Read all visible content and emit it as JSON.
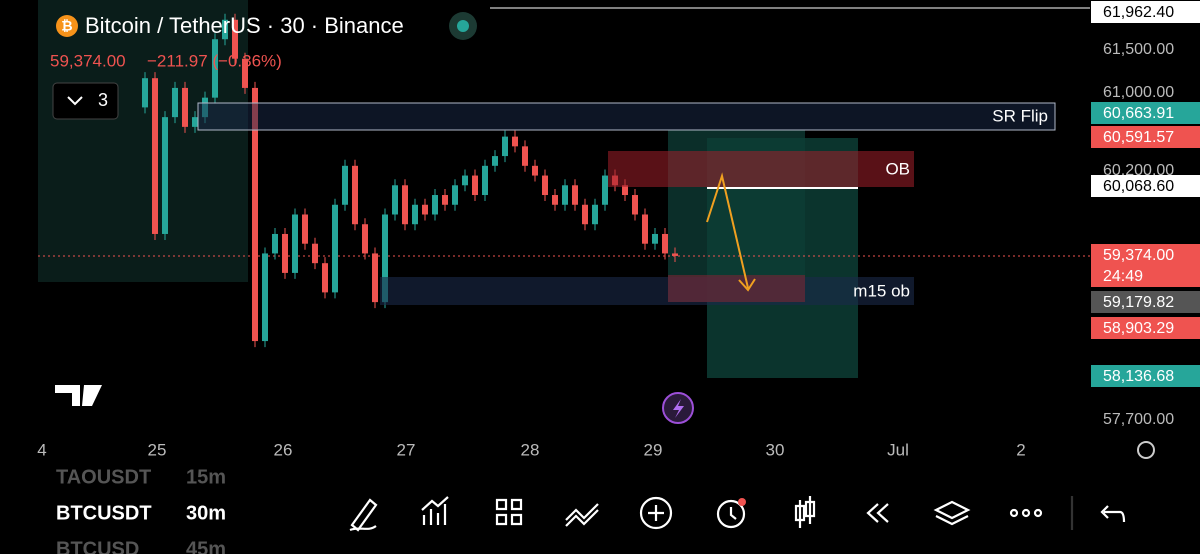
{
  "header": {
    "title": "Bitcoin / TetherUS · 30 · Binance",
    "price": "59,374.00",
    "change": "−211.97 (−0.36%)",
    "indicators": "3"
  },
  "chart_data": {
    "type": "candlestick",
    "ylim": [
      57525,
      62003
    ],
    "closes": [
      60900,
      61200,
      59600,
      60800,
      61100,
      60700,
      60800,
      61000,
      61600,
      61800,
      61400,
      61100,
      58500,
      59400,
      59600,
      59200,
      59800,
      59500,
      59300,
      59000,
      59900,
      60300,
      59700,
      59400,
      58900,
      59800,
      60100,
      59700,
      59900,
      59800,
      60000,
      59900,
      60100,
      60200,
      60000,
      60300,
      60400,
      60600,
      60500,
      60300,
      60200,
      60000,
      59900,
      60100,
      59900,
      59700,
      59900,
      60200,
      60100,
      60000,
      59800,
      59500,
      59600,
      59400,
      59374
    ]
  },
  "price_scale": [
    "61,962.40",
    "61,500.00",
    "61,000.00",
    "60,663.91",
    "60,591.57",
    "60,200.00",
    "60,068.60",
    "59,374.00",
    "24:49",
    "59,179.82",
    "58,903.29",
    "58,136.68",
    "57,700.00"
  ],
  "zones": [
    "SR Flip",
    "OB",
    "m15 ob"
  ],
  "time_axis": [
    "4",
    "25",
    "26",
    "27",
    "28",
    "29",
    "30",
    "Jul",
    "2"
  ],
  "watchlist": [
    [
      "TAOUSDT",
      "15m"
    ],
    [
      "BTCUSDT",
      "30m"
    ],
    [
      "BTCUSD",
      "45m"
    ]
  ]
}
